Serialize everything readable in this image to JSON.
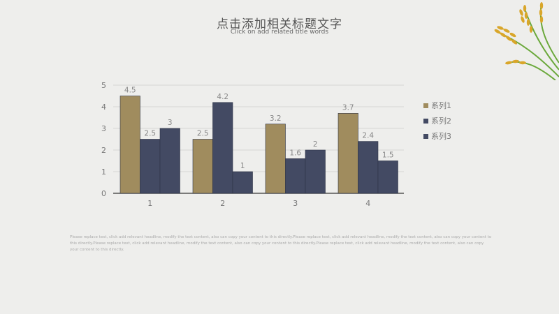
{
  "header": {
    "title": "点击添加相关标题文字",
    "subtitle": "Click on add related title words"
  },
  "body_text": "Please replace text, click add relevant headline, modify the text content, also can copy your content to this directly.Please replace text, click add relevant headline, modify the text content, also can copy your content to this directly.Please replace text, click add relevant headline, modify the text content, also can copy your content to this directly.Please replace text, click add relevant headline, modify the text content, also can copy your content to this directly.",
  "colors": {
    "series1": "#a08c5e",
    "series2": "#434a63",
    "series3": "#434a63"
  },
  "chart_data": {
    "type": "bar",
    "categories": [
      "1",
      "2",
      "3",
      "4"
    ],
    "series": [
      {
        "name": "系列1",
        "values": [
          4.5,
          2.5,
          3.2,
          3.7
        ]
      },
      {
        "name": "系列2",
        "values": [
          2.5,
          4.2,
          1.6,
          2.4
        ]
      },
      {
        "name": "系列3",
        "values": [
          3,
          1,
          2,
          1.5
        ]
      }
    ],
    "data_labels": [
      [
        "4.5",
        "2.5",
        "3.2",
        "3.7"
      ],
      [
        "2.5",
        "4.2",
        "1.6",
        "2.4"
      ],
      [
        "3",
        "1",
        "2",
        "1.5"
      ]
    ],
    "yticks": [
      "0",
      "1",
      "2",
      "3",
      "4",
      "5"
    ],
    "ylim": [
      0,
      5
    ],
    "grid": true,
    "legend_position": "right"
  }
}
